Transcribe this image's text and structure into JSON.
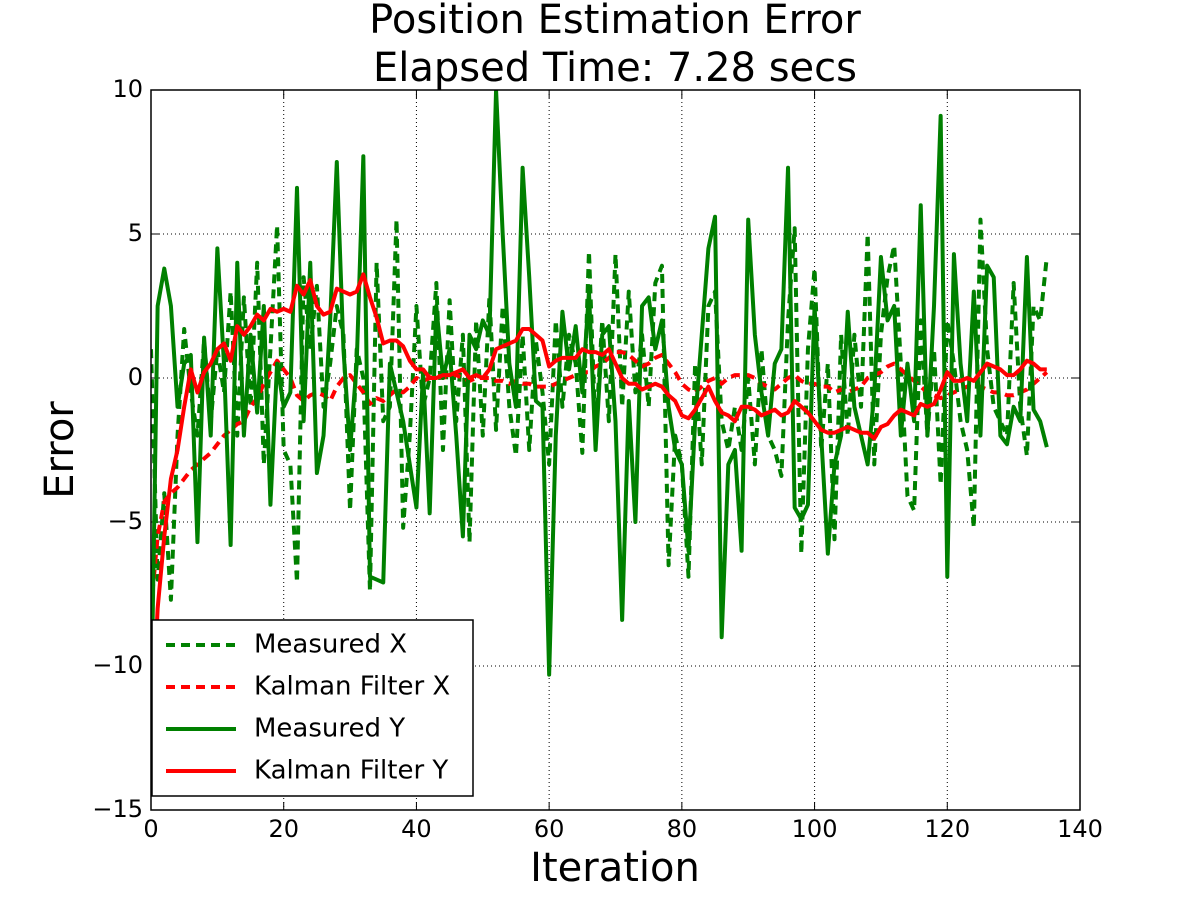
{
  "chart_data": {
    "type": "line",
    "title": "Position Estimation Error",
    "subtitle": "Elapsed Time: 7.28 secs",
    "x_label": "Iteration",
    "y_label": "Error",
    "x": [
      0,
      1,
      2,
      3,
      4,
      5,
      6,
      7,
      8,
      9,
      10,
      11,
      12,
      13,
      14,
      15,
      16,
      17,
      18,
      19,
      20,
      21,
      22,
      23,
      24,
      25,
      26,
      27,
      28,
      29,
      30,
      31,
      32,
      33,
      34,
      35,
      36,
      37,
      38,
      39,
      40,
      41,
      42,
      43,
      44,
      45,
      46,
      47,
      48,
      49,
      50,
      51,
      52,
      53,
      54,
      55,
      56,
      57,
      58,
      59,
      60,
      61,
      62,
      63,
      64,
      65,
      66,
      67,
      68,
      69,
      70,
      71,
      72,
      73,
      74,
      75,
      76,
      77,
      78,
      79,
      80,
      81,
      82,
      83,
      84,
      85,
      86,
      87,
      88,
      89,
      90,
      91,
      92,
      93,
      94,
      95,
      96,
      97,
      98,
      99,
      100,
      101,
      102,
      103,
      104,
      105,
      106,
      107,
      108,
      109,
      110,
      111,
      112,
      113,
      114,
      115,
      116,
      117,
      118,
      119,
      120,
      121,
      122,
      123,
      124,
      125,
      126,
      127,
      128,
      129,
      130,
      131,
      132,
      133,
      134,
      135
    ],
    "series": [
      {
        "name": "Measured X",
        "color": "#008000",
        "linestyle": "dashed",
        "values": [
          1,
          -7,
          -4,
          -7.7,
          -2,
          1.7,
          -0.5,
          -2,
          1.3,
          -1.5,
          1,
          -0.5,
          3,
          -2,
          2.8,
          -1,
          4,
          -3,
          1,
          5.3,
          -2.5,
          -3,
          -7.1,
          3.5,
          1,
          3.2,
          -1,
          0.5,
          2.5,
          1.5,
          -4.6,
          1,
          0,
          -7.4,
          4,
          -1.5,
          -1,
          5.5,
          -5.2,
          -2,
          2.5,
          -1,
          0,
          3.3,
          -2.5,
          2.7,
          -1.5,
          1.5,
          -5.7,
          2,
          -2,
          2.8,
          -1.8,
          2.5,
          -1,
          -2.7,
          1.5,
          -2.5,
          1.3,
          -0.5,
          -3,
          2,
          -1,
          1.5,
          0.5,
          -2.6,
          4.4,
          -2,
          2,
          -1.5,
          4.3,
          -1,
          3,
          -0.5,
          1.5,
          -1,
          3.3,
          3.9,
          -6.5,
          -2,
          -3,
          -6.9,
          0.5,
          -3,
          2.5,
          3,
          -1.5,
          -2.5,
          -1,
          -2.5,
          0,
          -3,
          1,
          -2,
          -2.5,
          -3.4,
          2,
          5.2,
          -6.1,
          1,
          3.8,
          -2.5,
          0.5,
          -5.6,
          1.5,
          -2,
          1.5,
          -1,
          5,
          -3,
          1.5,
          3.5,
          4.6,
          0.5,
          -4.1,
          -4.6,
          2,
          -2,
          1,
          -3.7,
          2,
          0.5,
          -1.5,
          -2.5,
          -5.2,
          5.5,
          1,
          -1,
          -1.5,
          -2,
          3.3,
          -1,
          -2.7,
          2.5,
          2,
          4.2
        ]
      },
      {
        "name": "Kalman Filter X",
        "color": "#ff0000",
        "linestyle": "dashed",
        "values": [
          -8,
          -5.5,
          -4.3,
          -4,
          -3.8,
          -3.5,
          -3.2,
          -3,
          -2.8,
          -2.6,
          -2.3,
          -2,
          -1.8,
          -1.6,
          -1.5,
          -1,
          -0.7,
          -0.2,
          0.2,
          0.6,
          0.3,
          0,
          -0.6,
          -0.8,
          -0.6,
          -0.5,
          -0.6,
          -0.8,
          -0.3,
          0,
          0.1,
          -0.2,
          -0.5,
          -0.9,
          -0.7,
          -0.8,
          -0.6,
          -0.4,
          -0.5,
          -0.3,
          0,
          -0.1,
          0,
          0.1,
          0,
          0.1,
          0.1,
          0,
          -0.1,
          0,
          0,
          0,
          -0.1,
          -0.1,
          -0.2,
          -0.1,
          -0.2,
          -0.2,
          -0.3,
          -0.3,
          -0.3,
          -0.2,
          -0.1,
          0,
          0.1,
          0.2,
          0.2,
          0.4,
          0.5,
          0.7,
          0.9,
          0.9,
          0.8,
          0.6,
          0.4,
          0.5,
          0.7,
          0.8,
          0.5,
          0.2,
          -0.2,
          -0.4,
          -0.5,
          -0.3,
          -0.1,
          0,
          -0.2,
          0,
          0.1,
          0.1,
          0.1,
          0,
          -0.2,
          -0.3,
          -0.4,
          -0.2,
          0,
          0.1,
          -0.1,
          -0.2,
          -0.2,
          -0.3,
          -0.3,
          -0.5,
          -0.4,
          -0.5,
          -0.4,
          -0.3,
          0,
          0.1,
          0.2,
          0.4,
          0.5,
          0.3,
          0.1,
          -0.1,
          -0.3,
          -0.5,
          -0.6,
          -0.7,
          -0.6,
          -0.5,
          -0.4,
          -0.3,
          -0.3,
          -0.3,
          -0.4,
          -0.5,
          -0.5,
          -0.6,
          -0.6,
          -0.5,
          -0.4,
          -0.2,
          0,
          0.2
        ]
      },
      {
        "name": "Measured Y",
        "color": "#008000",
        "linestyle": "solid",
        "values": [
          -12,
          2.5,
          3.8,
          2.5,
          -1,
          0.5,
          0.8,
          -5.7,
          1.4,
          -2,
          4.5,
          0.5,
          -5.8,
          4,
          -2,
          1.5,
          -1.2,
          2.5,
          -4.4,
          0.5,
          -1,
          -0.5,
          6.6,
          -1.5,
          4,
          -3.3,
          -2,
          2,
          7.5,
          1,
          -2.5,
          0.5,
          7.7,
          -6.9,
          -7,
          -7.1,
          0.5,
          -0.5,
          -1.5,
          -3,
          -4.5,
          0.2,
          -4.7,
          2.5,
          0,
          1,
          -2,
          -5.5,
          1.5,
          1,
          2,
          1.5,
          10,
          5,
          0.5,
          -1,
          7.3,
          3.5,
          -0.8,
          -1,
          -10.3,
          -2,
          2.3,
          0.3,
          1.8,
          -0.5,
          3,
          -2.5,
          1.5,
          1.8,
          -1.5,
          -8.4,
          -0.8,
          -5,
          2.5,
          2.8,
          1,
          2,
          -1,
          -2.5,
          -3,
          -6,
          -1.5,
          1.5,
          4.5,
          5.6,
          -9,
          -3,
          -2.5,
          -6,
          5.5,
          1.5,
          -0.5,
          -2,
          0.5,
          1,
          7.3,
          -4.5,
          -4.9,
          -4.4,
          2.5,
          -2,
          -6.1,
          -3,
          -2,
          2.3,
          -1,
          -2,
          -3,
          -0.5,
          4.2,
          2,
          2.5,
          -2,
          0.5,
          -1.5,
          6,
          -2,
          2.5,
          9.1,
          -6.9,
          4.3,
          0.5,
          -1.5,
          3,
          -2,
          3.9,
          3.5,
          -2,
          -2.3,
          -1,
          -1.5,
          4.2,
          -1.1,
          -1.5,
          -2.4
        ]
      },
      {
        "name": "Kalman Filter Y",
        "color": "#ff0000",
        "linestyle": "solid",
        "values": [
          -13,
          -8,
          -5.5,
          -3.5,
          -2.5,
          -1,
          0.3,
          -0.5,
          0.2,
          0.5,
          1,
          1.2,
          0.6,
          1.8,
          1.5,
          1.8,
          2.2,
          2,
          2.4,
          2.3,
          2.4,
          2.3,
          3.2,
          2.9,
          3.4,
          2.5,
          2.2,
          2.3,
          3.1,
          3,
          2.9,
          3,
          3.6,
          2.8,
          2.1,
          1.2,
          1.3,
          1.3,
          1.1,
          0.6,
          0.3,
          0.3,
          0,
          0,
          0.1,
          0.1,
          0.2,
          0.3,
          0,
          0.1,
          0,
          0.3,
          1,
          1.1,
          1.2,
          1.3,
          1.7,
          1.7,
          1.5,
          1.3,
          0.4,
          0.6,
          0.7,
          0.7,
          0.7,
          1,
          0.9,
          0.9,
          0.8,
          1,
          0.5,
          0,
          -0.2,
          -0.2,
          -0.4,
          -0.3,
          -0.2,
          -0.3,
          -0.6,
          -0.8,
          -1.3,
          -1.4,
          -1.1,
          -0.7,
          -0.3,
          -0.8,
          -1.2,
          -1.3,
          -1.5,
          -1,
          -1,
          -1.1,
          -1.3,
          -1.2,
          -1.1,
          -1.3,
          -1.2,
          -0.8,
          -1,
          -1.2,
          -1.5,
          -1.8,
          -1.9,
          -1.9,
          -1.8,
          -1.7,
          -1.8,
          -1.9,
          -1.9,
          -2.1,
          -1.7,
          -1.6,
          -1.3,
          -1.1,
          -1.2,
          -1.3,
          -0.9,
          -1,
          -0.9,
          -0.4,
          0.2,
          -0.1,
          -0.1,
          0,
          -0.1,
          0.2,
          0.5,
          0.4,
          0.3,
          0.1,
          0.1,
          0.3,
          0.6,
          0.5,
          0.3,
          0.3
        ]
      }
    ],
    "xlim": [
      0,
      140
    ],
    "xticks": [
      0,
      20,
      40,
      60,
      80,
      100,
      120,
      140
    ],
    "ylim": [
      -15,
      10
    ],
    "yticks": [
      {
        "value": -15,
        "label": "−15"
      },
      {
        "value": -10,
        "label": "−10"
      },
      {
        "value": -5,
        "label": "−5"
      },
      0,
      5,
      10
    ],
    "grid": true,
    "legend": "lower left"
  }
}
